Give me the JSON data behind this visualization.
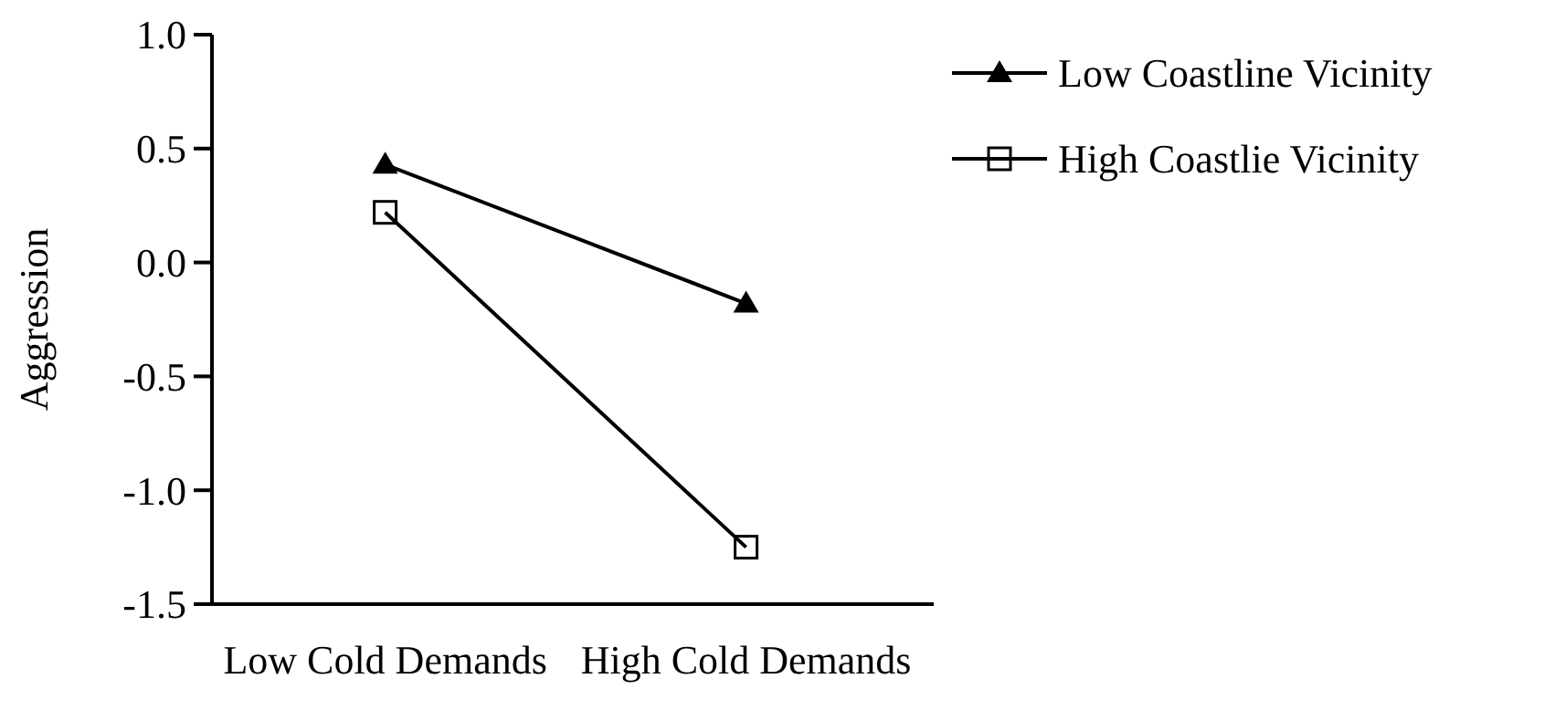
{
  "chart_data": {
    "type": "line",
    "ylabel": "Aggression",
    "categories": [
      "Low Cold Demands",
      "High Cold Demands"
    ],
    "ylim": [
      -1.5,
      1.0
    ],
    "yticks": [
      {
        "value": -1.5,
        "label": "-1.5"
      },
      {
        "value": -1.0,
        "label": "-1.0"
      },
      {
        "value": -0.5,
        "label": "-0.5"
      },
      {
        "value": 0,
        "label": "0.0"
      },
      {
        "value": 0.5,
        "label": "0.5"
      },
      {
        "value": 1.0,
        "label": "1.0"
      }
    ],
    "series": [
      {
        "name": "Low Coastline Vicinity",
        "color": "#000000",
        "marker": "triangle",
        "values": [
          0.43,
          -0.18
        ]
      },
      {
        "name": "High Coastlie Vicinity",
        "color": "#000000",
        "marker": "square",
        "values": [
          0.22,
          -1.25
        ]
      }
    ],
    "grid": false,
    "legend": "top right",
    "line_style": "solid"
  }
}
